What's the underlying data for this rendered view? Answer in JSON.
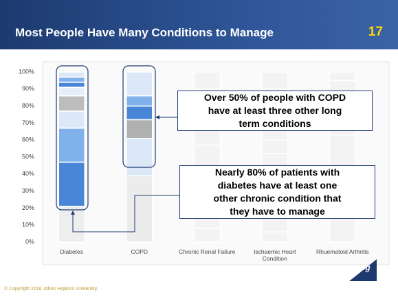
{
  "header": {
    "title": "Most People Have Many Conditions to Manage",
    "page_number": "17"
  },
  "chart_data": {
    "type": "bar",
    "stacked": true,
    "categories": [
      "Diabetes",
      "COPD",
      "Chronic Renal Failure",
      "Ischaemic Heart Condition",
      "Rhuematoid Arthritis"
    ],
    "series": [
      {
        "values": [
          21,
          39,
          8,
          6,
          30
        ],
        "colors": [
          "#eeeeee",
          "#ececec",
          "#f3f3f3",
          "#f3f3f3",
          "#f3f3f3"
        ]
      },
      {
        "values": [
          26,
          22,
          49,
          46,
          33
        ],
        "colors": [
          "#4a86d8",
          "#dce8f8",
          "#f3f3f3",
          "#f3f3f3",
          "#f3f3f3"
        ]
      },
      {
        "values": [
          20,
          11,
          33,
          8,
          20
        ],
        "colors": [
          "#80b1ea",
          "#b0b0b0",
          "#f3f3f3",
          "#f3f3f3",
          "#f3f3f3"
        ]
      },
      {
        "values": [
          10,
          8,
          10,
          30,
          12
        ],
        "colors": [
          "#dce8f8",
          "#4a86d8",
          "#f3f3f3",
          "#f3f3f3",
          "#f3f3f3"
        ]
      },
      {
        "values": [
          9,
          6,
          null,
          10,
          5
        ],
        "colors": [
          "#bdbdbd",
          "#80b1ea",
          null,
          "#f3f3f3",
          "#f3f3f3"
        ]
      },
      {
        "values": [
          5,
          14,
          null,
          null,
          null
        ],
        "colors": [
          "#e6eef9",
          "#dce8f8",
          null,
          null,
          null
        ]
      },
      {
        "values": [
          3,
          null,
          null,
          null,
          null
        ],
        "colors": [
          "#4a86d8",
          null,
          null,
          null,
          null
        ]
      },
      {
        "values": [
          3,
          null,
          null,
          null,
          null
        ],
        "colors": [
          "#80b1ea",
          null,
          null,
          null,
          null
        ]
      },
      {
        "values": [
          3,
          null,
          null,
          null,
          null
        ],
        "colors": [
          "#dce8f8",
          null,
          null,
          null,
          null
        ]
      }
    ],
    "ylim": [
      0,
      100
    ],
    "yticks": [
      {
        "value": 0,
        "label": "0%"
      },
      {
        "value": 10,
        "label": "10%"
      },
      {
        "value": 20,
        "label": "20%"
      },
      {
        "value": 30,
        "label": "30%"
      },
      {
        "value": 40,
        "label": "40%"
      },
      {
        "value": 50,
        "label": "50%"
      },
      {
        "value": 60,
        "label": "60%"
      },
      {
        "value": 70,
        "label": "70%"
      },
      {
        "value": 80,
        "label": "80%"
      },
      {
        "value": 90,
        "label": "90%"
      },
      {
        "value": 100,
        "label": "100%"
      }
    ]
  },
  "callouts": [
    {
      "lines": [
        "Over 50% of people with COPD",
        "have at least three other long",
        "term conditions"
      ]
    },
    {
      "lines": [
        "Nearly 80% of patients with",
        "diabetes have at least one",
        "other chronic condition that",
        "they have to manage"
      ]
    }
  ],
  "logo": "acg",
  "footer": "© Copyright 2016 Johns Hopkins University,"
}
